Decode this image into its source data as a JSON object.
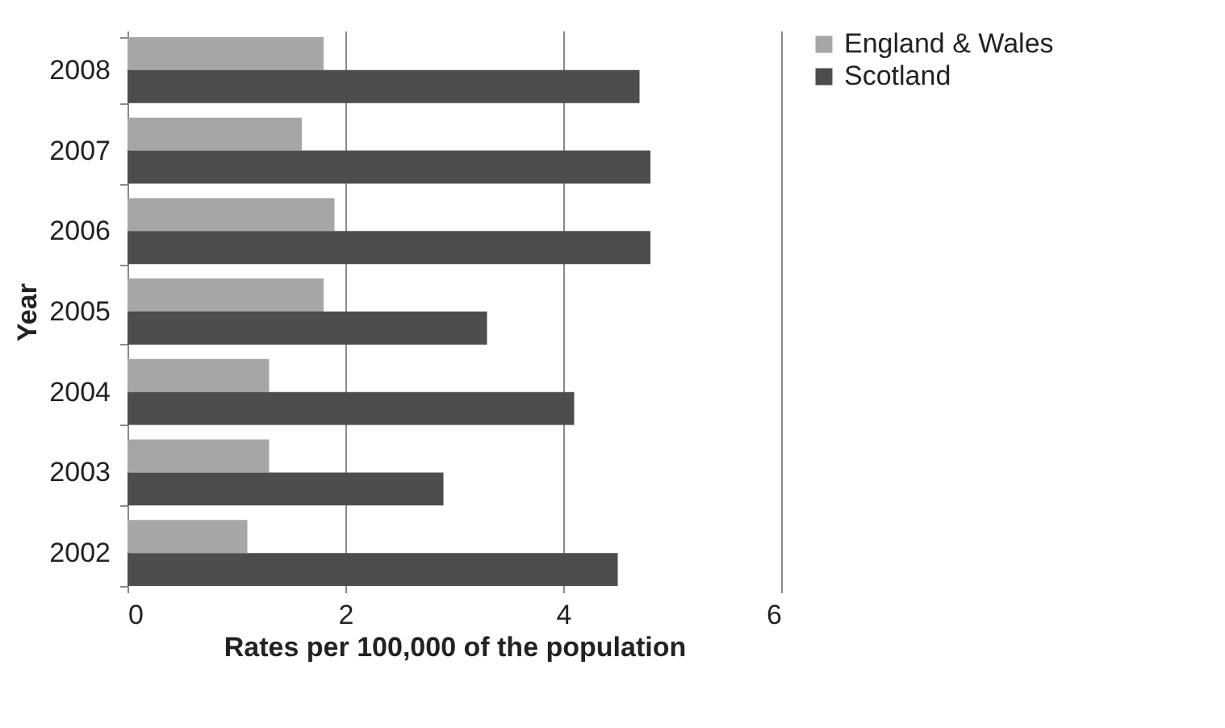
{
  "chart_data": {
    "type": "bar",
    "orientation": "horizontal",
    "xlabel": "Rates per 100,000 of the population",
    "ylabel": "Year",
    "categories": [
      "2008",
      "2007",
      "2006",
      "2005",
      "2004",
      "2003",
      "2002"
    ],
    "series": [
      {
        "name": "England & Wales",
        "color": "#a6a6a6",
        "values": [
          1.8,
          1.6,
          1.9,
          1.8,
          1.3,
          1.3,
          1.1
        ]
      },
      {
        "name": "Scotland",
        "color": "#4d4d4d",
        "values": [
          4.7,
          4.8,
          4.8,
          3.3,
          4.1,
          2.9,
          4.5
        ]
      }
    ],
    "xlim": [
      0,
      6
    ],
    "xticks": [
      0,
      2,
      4,
      6
    ],
    "grid": "x",
    "legend": "right"
  }
}
